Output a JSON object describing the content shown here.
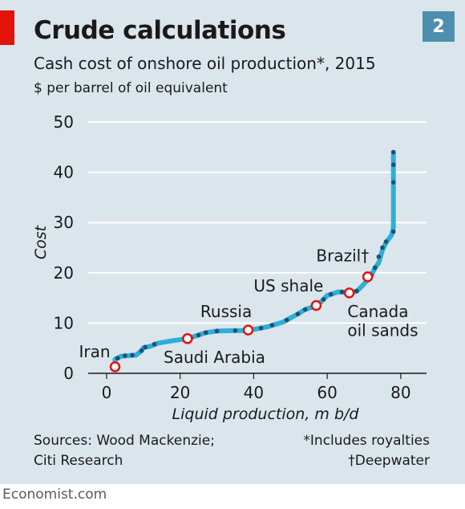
{
  "header": {
    "title": "Crude calculations",
    "badge": "2",
    "subtitle": "Cash cost of onshore oil production*, 2015",
    "unit": "$ per barrel of oil equivalent"
  },
  "footer": {
    "source_line1": "Sources: Wood Mackenzie;",
    "source_line2": "Citi Research",
    "note1": "*Includes royalties",
    "note2": "†Deepwater",
    "brand": "Economist.com"
  },
  "colors": {
    "line": "#2cafd9",
    "dots": "#1f4f6e",
    "marker_edge": "#e3120b",
    "grid": "#ffffff",
    "panel": "#dbe5ec",
    "badge": "#4e8fae",
    "brand_red": "#e3120b"
  },
  "chart_data": {
    "type": "line",
    "xlabel": "Liquid production, m b/d",
    "ylabel": "Cost",
    "xlim": [
      -5,
      87
    ],
    "ylim": [
      0,
      50
    ],
    "xticks": [
      0,
      20,
      40,
      60,
      80
    ],
    "yticks": [
      0,
      10,
      20,
      30,
      40,
      50
    ],
    "grid": true,
    "series": [
      {
        "values": [
          [
            2.3,
            1.7
          ],
          [
            2.3,
            2.8
          ],
          [
            4,
            3.4
          ],
          [
            7,
            3.6
          ],
          [
            8,
            3.6
          ],
          [
            9.5,
            4.5
          ],
          [
            10,
            5.1
          ],
          [
            12,
            5.4
          ],
          [
            14,
            6
          ],
          [
            18,
            6.5
          ],
          [
            22,
            6.9
          ],
          [
            25,
            7.6
          ],
          [
            27,
            8.1
          ],
          [
            30,
            8.4
          ],
          [
            35,
            8.5
          ],
          [
            38,
            8.5
          ],
          [
            42,
            9
          ],
          [
            44,
            9.3
          ],
          [
            48,
            10.2
          ],
          [
            50,
            11
          ],
          [
            52,
            11.8
          ],
          [
            54,
            12.7
          ],
          [
            56,
            13.2
          ],
          [
            58,
            14
          ],
          [
            60,
            15.5
          ],
          [
            63,
            16.2
          ],
          [
            66,
            16.1
          ],
          [
            68,
            16.3
          ],
          [
            69,
            17
          ],
          [
            71,
            18.6
          ],
          [
            72,
            19.5
          ],
          [
            73,
            21
          ],
          [
            74,
            22
          ],
          [
            75,
            24.5
          ],
          [
            76,
            26
          ],
          [
            77.5,
            27.5
          ],
          [
            78,
            29
          ],
          [
            78,
            35
          ],
          [
            78,
            44
          ]
        ]
      }
    ],
    "dot_points": [
      [
        3,
        3
      ],
      [
        5,
        3.5
      ],
      [
        7,
        3.6
      ],
      [
        9.5,
        4.5
      ],
      [
        10.5,
        5.2
      ],
      [
        13,
        5.8
      ],
      [
        23,
        7
      ],
      [
        25,
        7.6
      ],
      [
        27,
        8.1
      ],
      [
        30,
        8.4
      ],
      [
        35,
        8.5
      ],
      [
        42,
        9
      ],
      [
        45,
        9.6
      ],
      [
        49,
        10.6
      ],
      [
        52,
        11.8
      ],
      [
        54,
        12.7
      ],
      [
        57,
        13.4
      ],
      [
        59,
        14.7
      ],
      [
        61,
        15.7
      ],
      [
        64,
        16.2
      ],
      [
        68,
        16.4
      ],
      [
        72,
        19.5
      ],
      [
        73,
        21
      ],
      [
        74,
        23.2
      ],
      [
        75,
        25
      ],
      [
        76,
        26.2
      ],
      [
        78,
        28.2
      ],
      [
        78,
        38
      ],
      [
        78,
        41.5
      ],
      [
        78,
        44
      ]
    ],
    "highlights": [
      {
        "label": "Iran",
        "x": 2.3,
        "y": 1.3,
        "anchor": "start",
        "lx": -7.5,
        "ly": 3.2
      },
      {
        "label": "Saudi Arabia",
        "x": 22,
        "y": 6.9,
        "anchor": "start",
        "lx": 15.5,
        "ly": 2.1
      },
      {
        "label": "Russia",
        "x": 38.5,
        "y": 8.6,
        "anchor": "start",
        "lx": 25.5,
        "ly": 11.2
      },
      {
        "label": "US shale",
        "x": 57,
        "y": 13.5,
        "anchor": "start",
        "lx": 40,
        "ly": 16.3
      },
      {
        "label": "Brazil†",
        "x": 71,
        "y": 19.2,
        "anchor": "start",
        "lx": 57,
        "ly": 22.3
      },
      {
        "label": "Canada",
        "x": 66,
        "y": 16,
        "anchor": "start",
        "lx": 65.5,
        "ly": 11.2
      },
      {
        "label": "oil sands",
        "x": 66,
        "y": 16,
        "anchor": "start",
        "lx": 65.5,
        "ly": 7.4,
        "no_marker": true
      }
    ]
  }
}
